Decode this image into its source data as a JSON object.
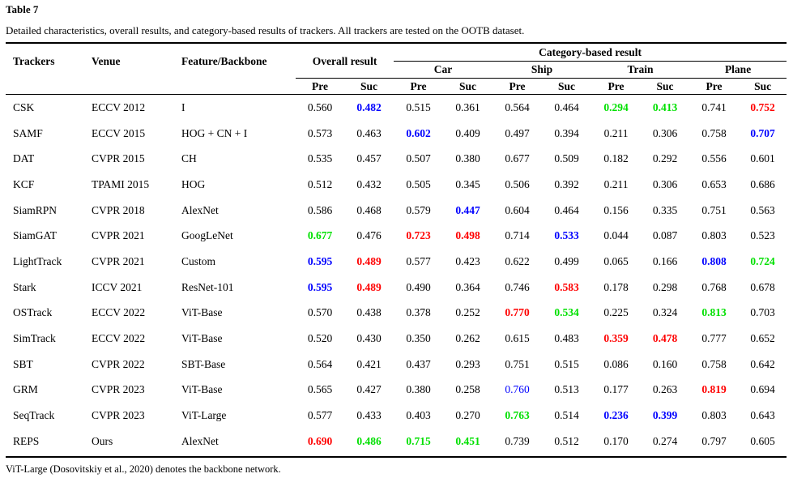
{
  "table_label": "Table 7",
  "caption": "Detailed characteristics, overall results, and category-based results of trackers. All trackers are tested on the OOTB dataset.",
  "headers": {
    "trackers": "Trackers",
    "venue": "Venue",
    "feature": "Feature/Backbone",
    "overall": "Overall result",
    "category": "Category-based result",
    "car": "Car",
    "ship": "Ship",
    "train": "Train",
    "plane": "Plane",
    "pre": "Pre",
    "suc": "Suc"
  },
  "highlight_colors": {
    "red": "#ff0000",
    "blue": "#0000ff",
    "green": "#00e000"
  },
  "rows": [
    {
      "tracker": "CSK",
      "venue": "ECCV 2012",
      "feature": "I",
      "cells": [
        [
          "0.560",
          ""
        ],
        [
          "0.482",
          "blue"
        ],
        [
          "0.515",
          ""
        ],
        [
          "0.361",
          ""
        ],
        [
          "0.564",
          ""
        ],
        [
          "0.464",
          ""
        ],
        [
          "0.294",
          "green"
        ],
        [
          "0.413",
          "green"
        ],
        [
          "0.741",
          ""
        ],
        [
          "0.752",
          "red"
        ]
      ]
    },
    {
      "tracker": "SAMF",
      "venue": "ECCV 2015",
      "feature": "HOG + CN + I",
      "cells": [
        [
          "0.573",
          ""
        ],
        [
          "0.463",
          ""
        ],
        [
          "0.602",
          "blue"
        ],
        [
          "0.409",
          ""
        ],
        [
          "0.497",
          ""
        ],
        [
          "0.394",
          ""
        ],
        [
          "0.211",
          ""
        ],
        [
          "0.306",
          ""
        ],
        [
          "0.758",
          ""
        ],
        [
          "0.707",
          "blue"
        ]
      ]
    },
    {
      "tracker": "DAT",
      "venue": "CVPR 2015",
      "feature": "CH",
      "cells": [
        [
          "0.535",
          ""
        ],
        [
          "0.457",
          ""
        ],
        [
          "0.507",
          ""
        ],
        [
          "0.380",
          ""
        ],
        [
          "0.677",
          ""
        ],
        [
          "0.509",
          ""
        ],
        [
          "0.182",
          ""
        ],
        [
          "0.292",
          ""
        ],
        [
          "0.556",
          ""
        ],
        [
          "0.601",
          ""
        ]
      ]
    },
    {
      "tracker": "KCF",
      "venue": "TPAMI 2015",
      "feature": "HOG",
      "cells": [
        [
          "0.512",
          ""
        ],
        [
          "0.432",
          ""
        ],
        [
          "0.505",
          ""
        ],
        [
          "0.345",
          ""
        ],
        [
          "0.506",
          ""
        ],
        [
          "0.392",
          ""
        ],
        [
          "0.211",
          ""
        ],
        [
          "0.306",
          ""
        ],
        [
          "0.653",
          ""
        ],
        [
          "0.686",
          ""
        ]
      ]
    },
    {
      "tracker": "SiamRPN",
      "venue": "CVPR 2018",
      "feature": "AlexNet",
      "cells": [
        [
          "0.586",
          ""
        ],
        [
          "0.468",
          ""
        ],
        [
          "0.579",
          ""
        ],
        [
          "0.447",
          "blue"
        ],
        [
          "0.604",
          ""
        ],
        [
          "0.464",
          ""
        ],
        [
          "0.156",
          ""
        ],
        [
          "0.335",
          ""
        ],
        [
          "0.751",
          ""
        ],
        [
          "0.563",
          ""
        ]
      ]
    },
    {
      "tracker": "SiamGAT",
      "venue": "CVPR 2021",
      "feature": "GoogLeNet",
      "cells": [
        [
          "0.677",
          "green"
        ],
        [
          "0.476",
          ""
        ],
        [
          "0.723",
          "red"
        ],
        [
          "0.498",
          "red"
        ],
        [
          "0.714",
          ""
        ],
        [
          "0.533",
          "blue"
        ],
        [
          "0.044",
          ""
        ],
        [
          "0.087",
          ""
        ],
        [
          "0.803",
          ""
        ],
        [
          "0.523",
          ""
        ]
      ]
    },
    {
      "tracker": "LightTrack",
      "venue": "CVPR 2021",
      "feature": "Custom",
      "cells": [
        [
          "0.595",
          "blue"
        ],
        [
          "0.489",
          "red"
        ],
        [
          "0.577",
          ""
        ],
        [
          "0.423",
          ""
        ],
        [
          "0.622",
          ""
        ],
        [
          "0.499",
          ""
        ],
        [
          "0.065",
          ""
        ],
        [
          "0.166",
          ""
        ],
        [
          "0.808",
          "blue"
        ],
        [
          "0.724",
          "green"
        ]
      ]
    },
    {
      "tracker": "Stark",
      "venue": "ICCV 2021",
      "feature": "ResNet-101",
      "cells": [
        [
          "0.595",
          "blue"
        ],
        [
          "0.489",
          "red"
        ],
        [
          "0.490",
          ""
        ],
        [
          "0.364",
          ""
        ],
        [
          "0.746",
          ""
        ],
        [
          "0.583",
          "red"
        ],
        [
          "0.178",
          ""
        ],
        [
          "0.298",
          ""
        ],
        [
          "0.768",
          ""
        ],
        [
          "0.678",
          ""
        ]
      ]
    },
    {
      "tracker": "OSTrack",
      "venue": "ECCV 2022",
      "feature": "ViT-Base",
      "cells": [
        [
          "0.570",
          ""
        ],
        [
          "0.438",
          ""
        ],
        [
          "0.378",
          ""
        ],
        [
          "0.252",
          ""
        ],
        [
          "0.770",
          "red"
        ],
        [
          "0.534",
          "green"
        ],
        [
          "0.225",
          ""
        ],
        [
          "0.324",
          ""
        ],
        [
          "0.813",
          "green"
        ],
        [
          "0.703",
          ""
        ]
      ]
    },
    {
      "tracker": "SimTrack",
      "venue": "ECCV 2022",
      "feature": "ViT-Base",
      "cells": [
        [
          "0.520",
          ""
        ],
        [
          "0.430",
          ""
        ],
        [
          "0.350",
          ""
        ],
        [
          "0.262",
          ""
        ],
        [
          "0.615",
          ""
        ],
        [
          "0.483",
          ""
        ],
        [
          "0.359",
          "red"
        ],
        [
          "0.478",
          "red"
        ],
        [
          "0.777",
          ""
        ],
        [
          "0.652",
          ""
        ]
      ]
    },
    {
      "tracker": "SBT",
      "venue": "CVPR 2022",
      "feature": "SBT-Base",
      "cells": [
        [
          "0.564",
          ""
        ],
        [
          "0.421",
          ""
        ],
        [
          "0.437",
          ""
        ],
        [
          "0.293",
          ""
        ],
        [
          "0.751",
          ""
        ],
        [
          "0.515",
          ""
        ],
        [
          "0.086",
          ""
        ],
        [
          "0.160",
          ""
        ],
        [
          "0.758",
          ""
        ],
        [
          "0.642",
          ""
        ]
      ]
    },
    {
      "tracker": "GRM",
      "venue": "CVPR 2023",
      "feature": "ViT-Base",
      "cells": [
        [
          "0.565",
          ""
        ],
        [
          "0.427",
          ""
        ],
        [
          "0.380",
          ""
        ],
        [
          "0.258",
          ""
        ],
        [
          "0.760",
          "bluen"
        ],
        [
          "0.513",
          ""
        ],
        [
          "0.177",
          ""
        ],
        [
          "0.263",
          ""
        ],
        [
          "0.819",
          "red"
        ],
        [
          "0.694",
          ""
        ]
      ]
    },
    {
      "tracker": "SeqTrack",
      "venue": "CVPR 2023",
      "feature": "ViT-Large",
      "cells": [
        [
          "0.577",
          ""
        ],
        [
          "0.433",
          ""
        ],
        [
          "0.403",
          ""
        ],
        [
          "0.270",
          ""
        ],
        [
          "0.763",
          "green"
        ],
        [
          "0.514",
          ""
        ],
        [
          "0.236",
          "blue"
        ],
        [
          "0.399",
          "blue"
        ],
        [
          "0.803",
          ""
        ],
        [
          "0.643",
          ""
        ]
      ]
    },
    {
      "tracker": "REPS",
      "venue": "Ours",
      "feature": "AlexNet",
      "cells": [
        [
          "0.690",
          "red"
        ],
        [
          "0.486",
          "green"
        ],
        [
          "0.715",
          "green"
        ],
        [
          "0.451",
          "green"
        ],
        [
          "0.739",
          ""
        ],
        [
          "0.512",
          ""
        ],
        [
          "0.170",
          ""
        ],
        [
          "0.274",
          ""
        ],
        [
          "0.797",
          ""
        ],
        [
          "0.605",
          ""
        ]
      ]
    }
  ],
  "footnote": "ViT-Large (Dosovitskiy et al., 2020) denotes the backbone network."
}
